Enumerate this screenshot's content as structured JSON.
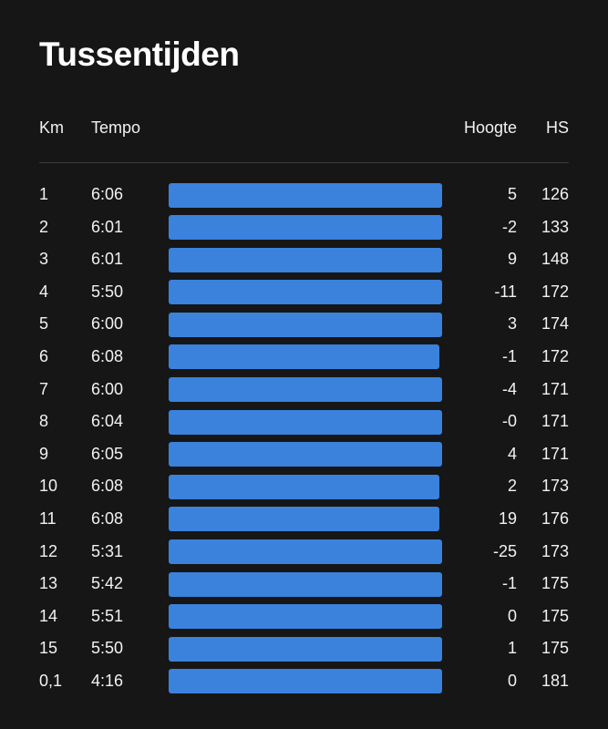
{
  "title": "Tussentijden",
  "columns": {
    "km": "Km",
    "tempo": "Tempo",
    "hoogte": "Hoogte",
    "hs": "HS"
  },
  "bar_color": "#3a82dc",
  "splits": [
    {
      "km": "1",
      "tempo": "6:06",
      "hoogte": "5",
      "hs": "126"
    },
    {
      "km": "2",
      "tempo": "6:01",
      "hoogte": "-2",
      "hs": "133"
    },
    {
      "km": "3",
      "tempo": "6:01",
      "hoogte": "9",
      "hs": "148"
    },
    {
      "km": "4",
      "tempo": "5:50",
      "hoogte": "-11",
      "hs": "172"
    },
    {
      "km": "5",
      "tempo": "6:00",
      "hoogte": "3",
      "hs": "174"
    },
    {
      "km": "6",
      "tempo": "6:08",
      "hoogte": "-1",
      "hs": "172"
    },
    {
      "km": "7",
      "tempo": "6:00",
      "hoogte": "-4",
      "hs": "171"
    },
    {
      "km": "8",
      "tempo": "6:04",
      "hoogte": "-0",
      "hs": "171"
    },
    {
      "km": "9",
      "tempo": "6:05",
      "hoogte": "4",
      "hs": "171"
    },
    {
      "km": "10",
      "tempo": "6:08",
      "hoogte": "2",
      "hs": "173"
    },
    {
      "km": "11",
      "tempo": "6:08",
      "hoogte": "19",
      "hs": "176"
    },
    {
      "km": "12",
      "tempo": "5:31",
      "hoogte": "-25",
      "hs": "173"
    },
    {
      "km": "13",
      "tempo": "5:42",
      "hoogte": "-1",
      "hs": "175"
    },
    {
      "km": "14",
      "tempo": "5:51",
      "hoogte": "0",
      "hs": "175"
    },
    {
      "km": "15",
      "tempo": "5:50",
      "hoogte": "1",
      "hs": "175"
    },
    {
      "km": "0,1",
      "tempo": "4:16",
      "hoogte": "0",
      "hs": "181"
    }
  ]
}
